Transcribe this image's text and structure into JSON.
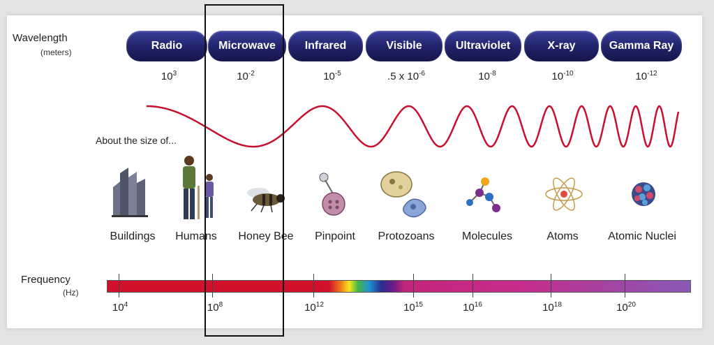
{
  "wavelength": {
    "title": "Wavelength",
    "unit": "(meters)"
  },
  "bands": [
    {
      "name": "Radio",
      "base": "10",
      "exp": "3"
    },
    {
      "name": "Microwave",
      "base": "10",
      "exp": "-2"
    },
    {
      "name": "Infrared",
      "base": "10",
      "exp": "-5"
    },
    {
      "name": "Visible",
      "base": ".5 x 10",
      "exp": "-6"
    },
    {
      "name": "Ultraviolet",
      "base": "10",
      "exp": "-8"
    },
    {
      "name": "X-ray",
      "base": "10",
      "exp": "-10"
    },
    {
      "name": "Gamma Ray",
      "base": "10",
      "exp": "-12"
    }
  ],
  "size_label": "About the size of...",
  "objects": [
    "Buildings",
    "Humans",
    "Honey Bee",
    "Pinpoint",
    "Protozoans",
    "Molecules",
    "Atoms",
    "Atomic Nuclei"
  ],
  "frequency": {
    "title": "Frequency",
    "unit": "(Hz)",
    "ticks": [
      {
        "base": "10",
        "exp": "4"
      },
      {
        "base": "10",
        "exp": "8"
      },
      {
        "base": "10",
        "exp": "12"
      },
      {
        "base": "10",
        "exp": "15"
      },
      {
        "base": "10",
        "exp": "16"
      },
      {
        "base": "10",
        "exp": "18"
      },
      {
        "base": "10",
        "exp": "20"
      }
    ]
  },
  "colors": {
    "band_dark": "#1f2267",
    "wave": "#c8102e",
    "highlight": "#111111"
  }
}
